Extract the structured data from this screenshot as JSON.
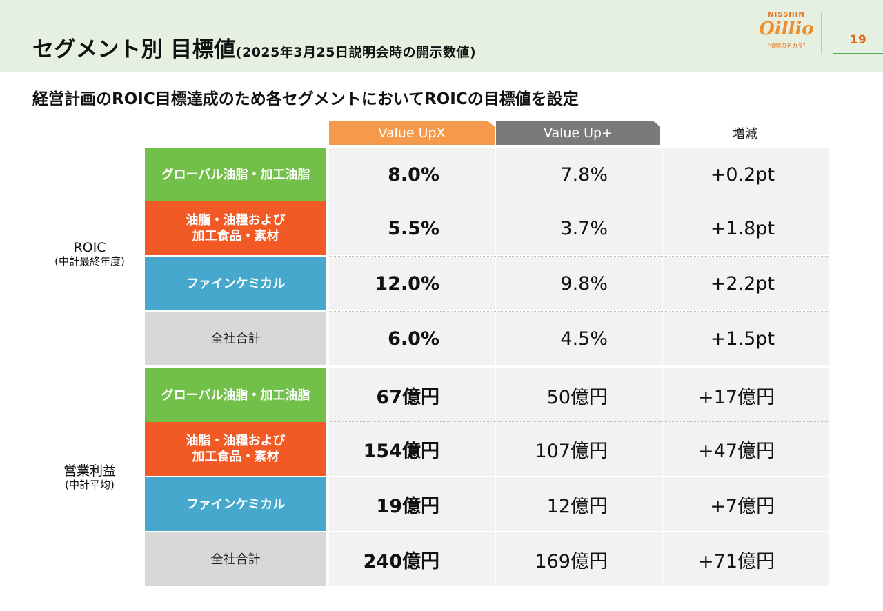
{
  "header": {
    "title": "セグメント別 目標値",
    "title_note": "(2025年3月25日説明会時の開示数値)",
    "logo": {
      "top": "NISSHIN",
      "main": "Oillio",
      "tagline": "\"植物のチカラ\""
    },
    "page_number": "19"
  },
  "subtitle": "経営計画のROIC目標達成のため各セグメントにおいてROICの目標値を設定",
  "columns": {
    "value_upx": "Value UpX",
    "value_up_plus": "Value Up+",
    "diff": "増減"
  },
  "groups": {
    "roic": {
      "label": "ROIC",
      "sub": "(中計最終年度)"
    },
    "op": {
      "label": "営業利益",
      "sub": "(中計平均)"
    }
  },
  "roic_rows": [
    {
      "segment": "グローバル油脂・加工油脂",
      "value_upx": "8.0%",
      "value_up_plus": "7.8%",
      "diff": "+0.2pt"
    },
    {
      "segment": "油脂・油糧および\n加工食品・素材",
      "value_upx": "5.5%",
      "value_up_plus": "3.7%",
      "diff": "+1.8pt"
    },
    {
      "segment": "ファインケミカル",
      "value_upx": "12.0%",
      "value_up_plus": "9.8%",
      "diff": "+2.2pt"
    },
    {
      "segment": "全社合計",
      "value_upx": "6.0%",
      "value_up_plus": "4.5%",
      "diff": "+1.5pt"
    }
  ],
  "op_rows": [
    {
      "segment": "グローバル油脂・加工油脂",
      "value_upx": "67億円",
      "value_up_plus": "50億円",
      "diff": "+17億円"
    },
    {
      "segment": "油脂・油糧および\n加工食品・素材",
      "value_upx": "154億円",
      "value_up_plus": "107億円",
      "diff": "+47億円"
    },
    {
      "segment": "ファインケミカル",
      "value_upx": "19億円",
      "value_up_plus": "12億円",
      "diff": "+7億円"
    },
    {
      "segment": "全社合計",
      "value_upx": "240億円",
      "value_up_plus": "169億円",
      "diff": "+71億円"
    }
  ],
  "colors": {
    "header_bg": "#e6f0e0",
    "green": "#72c04a",
    "orange": "#f15a24",
    "blue": "#45a8cc",
    "gray": "#d8d8d8",
    "value_upx_head": "#f59a4a",
    "value_up_plus_head": "#7a7a7a",
    "brand_orange": "#f08c2a"
  }
}
